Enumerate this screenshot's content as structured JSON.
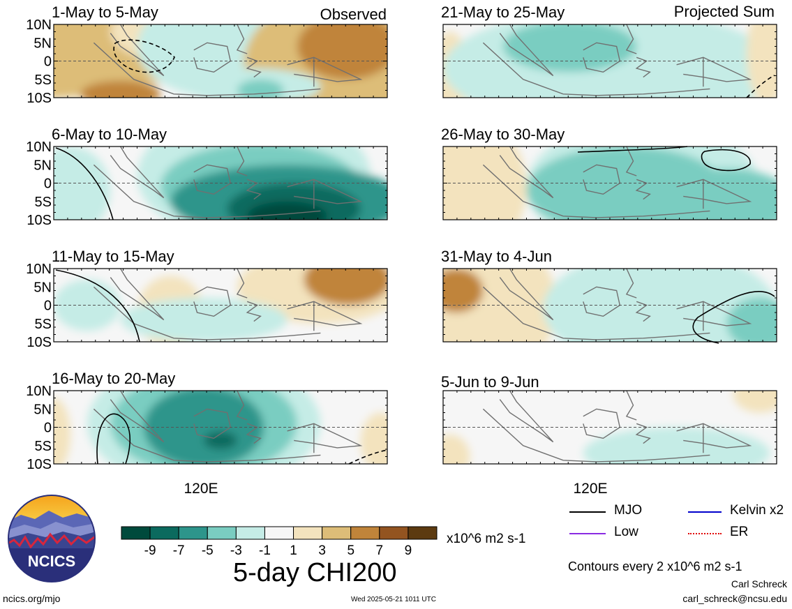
{
  "chart_data": {
    "type": "heatmap",
    "variable": "5-day CHI200",
    "lat_labels": [
      "10N",
      "5N",
      "0",
      "5S",
      "10S"
    ],
    "lon_labels": [
      "120E"
    ],
    "colorbar": {
      "ticks": [
        "-9",
        "-7",
        "-5",
        "-3",
        "-1",
        "1",
        "3",
        "5",
        "7",
        "9"
      ],
      "units": "x10^6 m2 s-1",
      "colors": [
        "#004a3c",
        "#0b6a5e",
        "#2d958b",
        "#7acdc1",
        "#c5ece6",
        "#f6f6f6",
        "#f3e3be",
        "#ddbd78",
        "#c0843a",
        "#935420",
        "#5c3a10"
      ]
    },
    "panels_left": [
      {
        "period": "1-May to 5-May",
        "label": "Observed"
      },
      {
        "period": "6-May to 10-May",
        "label": ""
      },
      {
        "period": "11-May to 15-May",
        "label": ""
      },
      {
        "period": "16-May to 20-May",
        "label": ""
      }
    ],
    "panels_right": [
      {
        "period": "21-May to 25-May",
        "label": "Projected Sum"
      },
      {
        "period": "26-May to 30-May",
        "label": ""
      },
      {
        "period": "31-May to 4-Jun",
        "label": ""
      },
      {
        "period": "5-Jun to 9-Jun",
        "label": ""
      }
    ],
    "legend": [
      {
        "name": "MJO",
        "color": "#000000"
      },
      {
        "name": "Kelvin x2",
        "color": "#0000cc"
      },
      {
        "name": "Low",
        "color": "#8a2be2"
      },
      {
        "name": "ER",
        "color": "#e00000"
      }
    ],
    "contour_note": "Contours every 2 x10^6 m2 s-1"
  },
  "figure": {
    "title": "5-day CHI200",
    "author": "Carl Schreck",
    "email": "carl_schreck@ncsu.edu",
    "site": "ncics.org/mjo",
    "timestamp": "Wed 2025-05-21 1011 UTC",
    "logo_text": "NCICS"
  }
}
